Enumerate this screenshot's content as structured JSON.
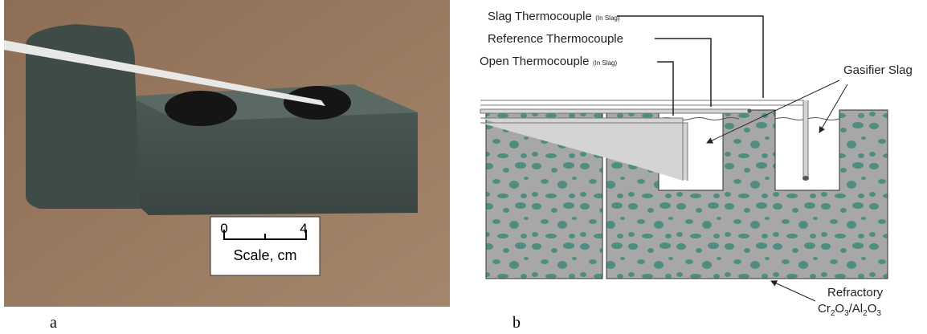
{
  "panels": [
    {
      "label": "a",
      "scale": {
        "min": "0",
        "max": "4",
        "caption": "Scale, cm"
      }
    },
    {
      "label": "b",
      "slag_thermocouple": {
        "name": "Slag Thermocouple",
        "note": "(In Slag)"
      },
      "reference_thermocouple": {
        "name": "Reference Thermocouple"
      },
      "open_thermocouple": {
        "name": "Open Thermocouple",
        "note": "(In Slag)"
      },
      "gasifier_slag": "Gasifier Slag",
      "refractory": {
        "name": "Refractory",
        "formula": [
          "Cr",
          "2",
          "O",
          "3",
          "/Al",
          "2",
          "O",
          "3"
        ]
      }
    }
  ]
}
